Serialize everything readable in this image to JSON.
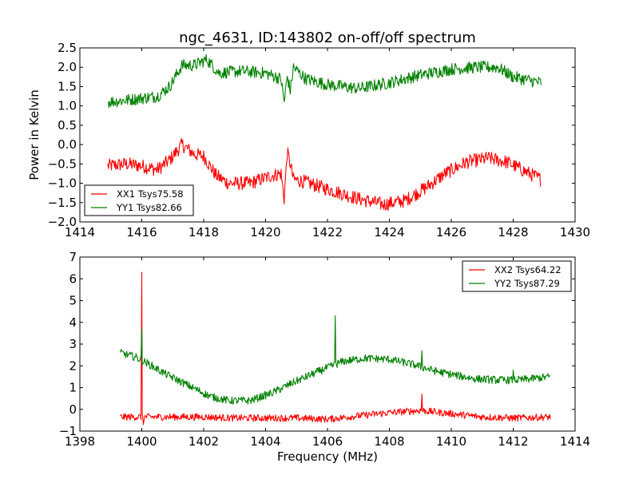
{
  "chart_data": [
    {
      "type": "line",
      "title": "ngc_4631, ID:143802 on-off/off spectrum",
      "xlabel": "",
      "ylabel": "Power in Kelvin",
      "xlim": [
        1414,
        1430
      ],
      "ylim": [
        -2.0,
        2.5
      ],
      "xticks": [
        "1414",
        "1416",
        "1418",
        "1420",
        "1422",
        "1424",
        "1426",
        "1428",
        "1430"
      ],
      "yticks": [
        "−2.0",
        "−1.5",
        "−1.0",
        "−0.5",
        "0.0",
        "0.5",
        "1.0",
        "1.5",
        "2.0",
        "2.5"
      ],
      "grid": false,
      "legend_position": "lower-left",
      "series": [
        {
          "name": "XX1 Tsys75.58",
          "color": "#ff0000",
          "noise": 0.18,
          "x": [
            1414.9,
            1415.5,
            1416.0,
            1416.5,
            1416.9,
            1417.3,
            1417.7,
            1418.0,
            1418.4,
            1418.8,
            1419.5,
            1420.2,
            1420.5,
            1420.6,
            1420.7,
            1420.8,
            1420.9,
            1421.2,
            1422.0,
            1423.0,
            1423.8,
            1424.5,
            1425.2,
            1425.8,
            1426.5,
            1427.2,
            1427.8,
            1428.4,
            1428.9
          ],
          "y": [
            -0.55,
            -0.5,
            -0.55,
            -0.65,
            -0.4,
            0.0,
            -0.25,
            -0.3,
            -0.8,
            -1.0,
            -1.0,
            -0.8,
            -0.75,
            -1.4,
            -0.2,
            -0.5,
            -0.9,
            -0.95,
            -1.15,
            -1.4,
            -1.55,
            -1.45,
            -1.1,
            -0.75,
            -0.45,
            -0.35,
            -0.45,
            -0.7,
            -0.9
          ]
        },
        {
          "name": "YY1 Tsys82.66",
          "color": "#008000",
          "noise": 0.16,
          "x": [
            1414.9,
            1415.5,
            1416.0,
            1416.5,
            1416.9,
            1417.3,
            1417.7,
            1418.1,
            1418.5,
            1419.2,
            1420.0,
            1420.5,
            1420.6,
            1420.7,
            1420.8,
            1420.9,
            1421.3,
            1422.0,
            1423.0,
            1424.0,
            1425.0,
            1426.0,
            1426.8,
            1427.5,
            1428.0,
            1428.9
          ],
          "y": [
            1.1,
            1.15,
            1.2,
            1.25,
            1.5,
            2.05,
            2.05,
            2.2,
            1.85,
            1.9,
            1.85,
            1.7,
            1.1,
            1.75,
            1.4,
            2.0,
            1.7,
            1.55,
            1.45,
            1.6,
            1.8,
            1.95,
            2.0,
            2.0,
            1.75,
            1.6
          ]
        }
      ]
    },
    {
      "type": "line",
      "title": "",
      "xlabel": "Frequency (MHz)",
      "ylabel": "",
      "xlim": [
        1398,
        1414
      ],
      "ylim": [
        -1,
        7
      ],
      "xticks": [
        "1398",
        "1400",
        "1402",
        "1404",
        "1406",
        "1408",
        "1410",
        "1412",
        "1414"
      ],
      "yticks": [
        "−1",
        "0",
        "1",
        "2",
        "3",
        "4",
        "5",
        "6",
        "7"
      ],
      "grid": false,
      "legend_position": "upper-right",
      "series": [
        {
          "name": "XX2 Tsys64.22",
          "color": "#ff0000",
          "noise": 0.16,
          "x": [
            1399.3,
            1400.0,
            1401.0,
            1402.0,
            1403.0,
            1404.0,
            1405.0,
            1406.0,
            1407.0,
            1408.0,
            1409.0,
            1410.0,
            1411.0,
            1412.0,
            1413.2
          ],
          "y": [
            -0.35,
            -0.35,
            -0.35,
            -0.35,
            -0.4,
            -0.4,
            -0.4,
            -0.45,
            -0.3,
            -0.15,
            -0.05,
            -0.2,
            -0.35,
            -0.4,
            -0.35
          ],
          "spikes": [
            {
              "x": 1400.0,
              "y": 6.3
            },
            {
              "x": 1400.05,
              "y": -0.7
            },
            {
              "x": 1409.05,
              "y": 0.7
            }
          ]
        },
        {
          "name": "YY2 Tsys87.29",
          "color": "#008000",
          "noise": 0.18,
          "x": [
            1399.3,
            1399.8,
            1400.2,
            1400.8,
            1401.5,
            1402.2,
            1402.8,
            1403.5,
            1404.2,
            1405.0,
            1405.8,
            1406.5,
            1407.2,
            1408.0,
            1408.8,
            1409.5,
            1410.2,
            1410.8,
            1411.5,
            1412.2,
            1413.2
          ],
          "y": [
            2.6,
            2.4,
            2.1,
            1.6,
            1.1,
            0.6,
            0.4,
            0.4,
            0.75,
            1.3,
            1.8,
            2.2,
            2.35,
            2.3,
            2.05,
            1.75,
            1.55,
            1.4,
            1.35,
            1.35,
            1.5
          ],
          "spikes": [
            {
              "x": 1400.0,
              "y": 3.7
            },
            {
              "x": 1406.25,
              "y": 4.3
            },
            {
              "x": 1409.05,
              "y": 2.7
            },
            {
              "x": 1412.0,
              "y": 1.8
            }
          ]
        }
      ]
    }
  ]
}
